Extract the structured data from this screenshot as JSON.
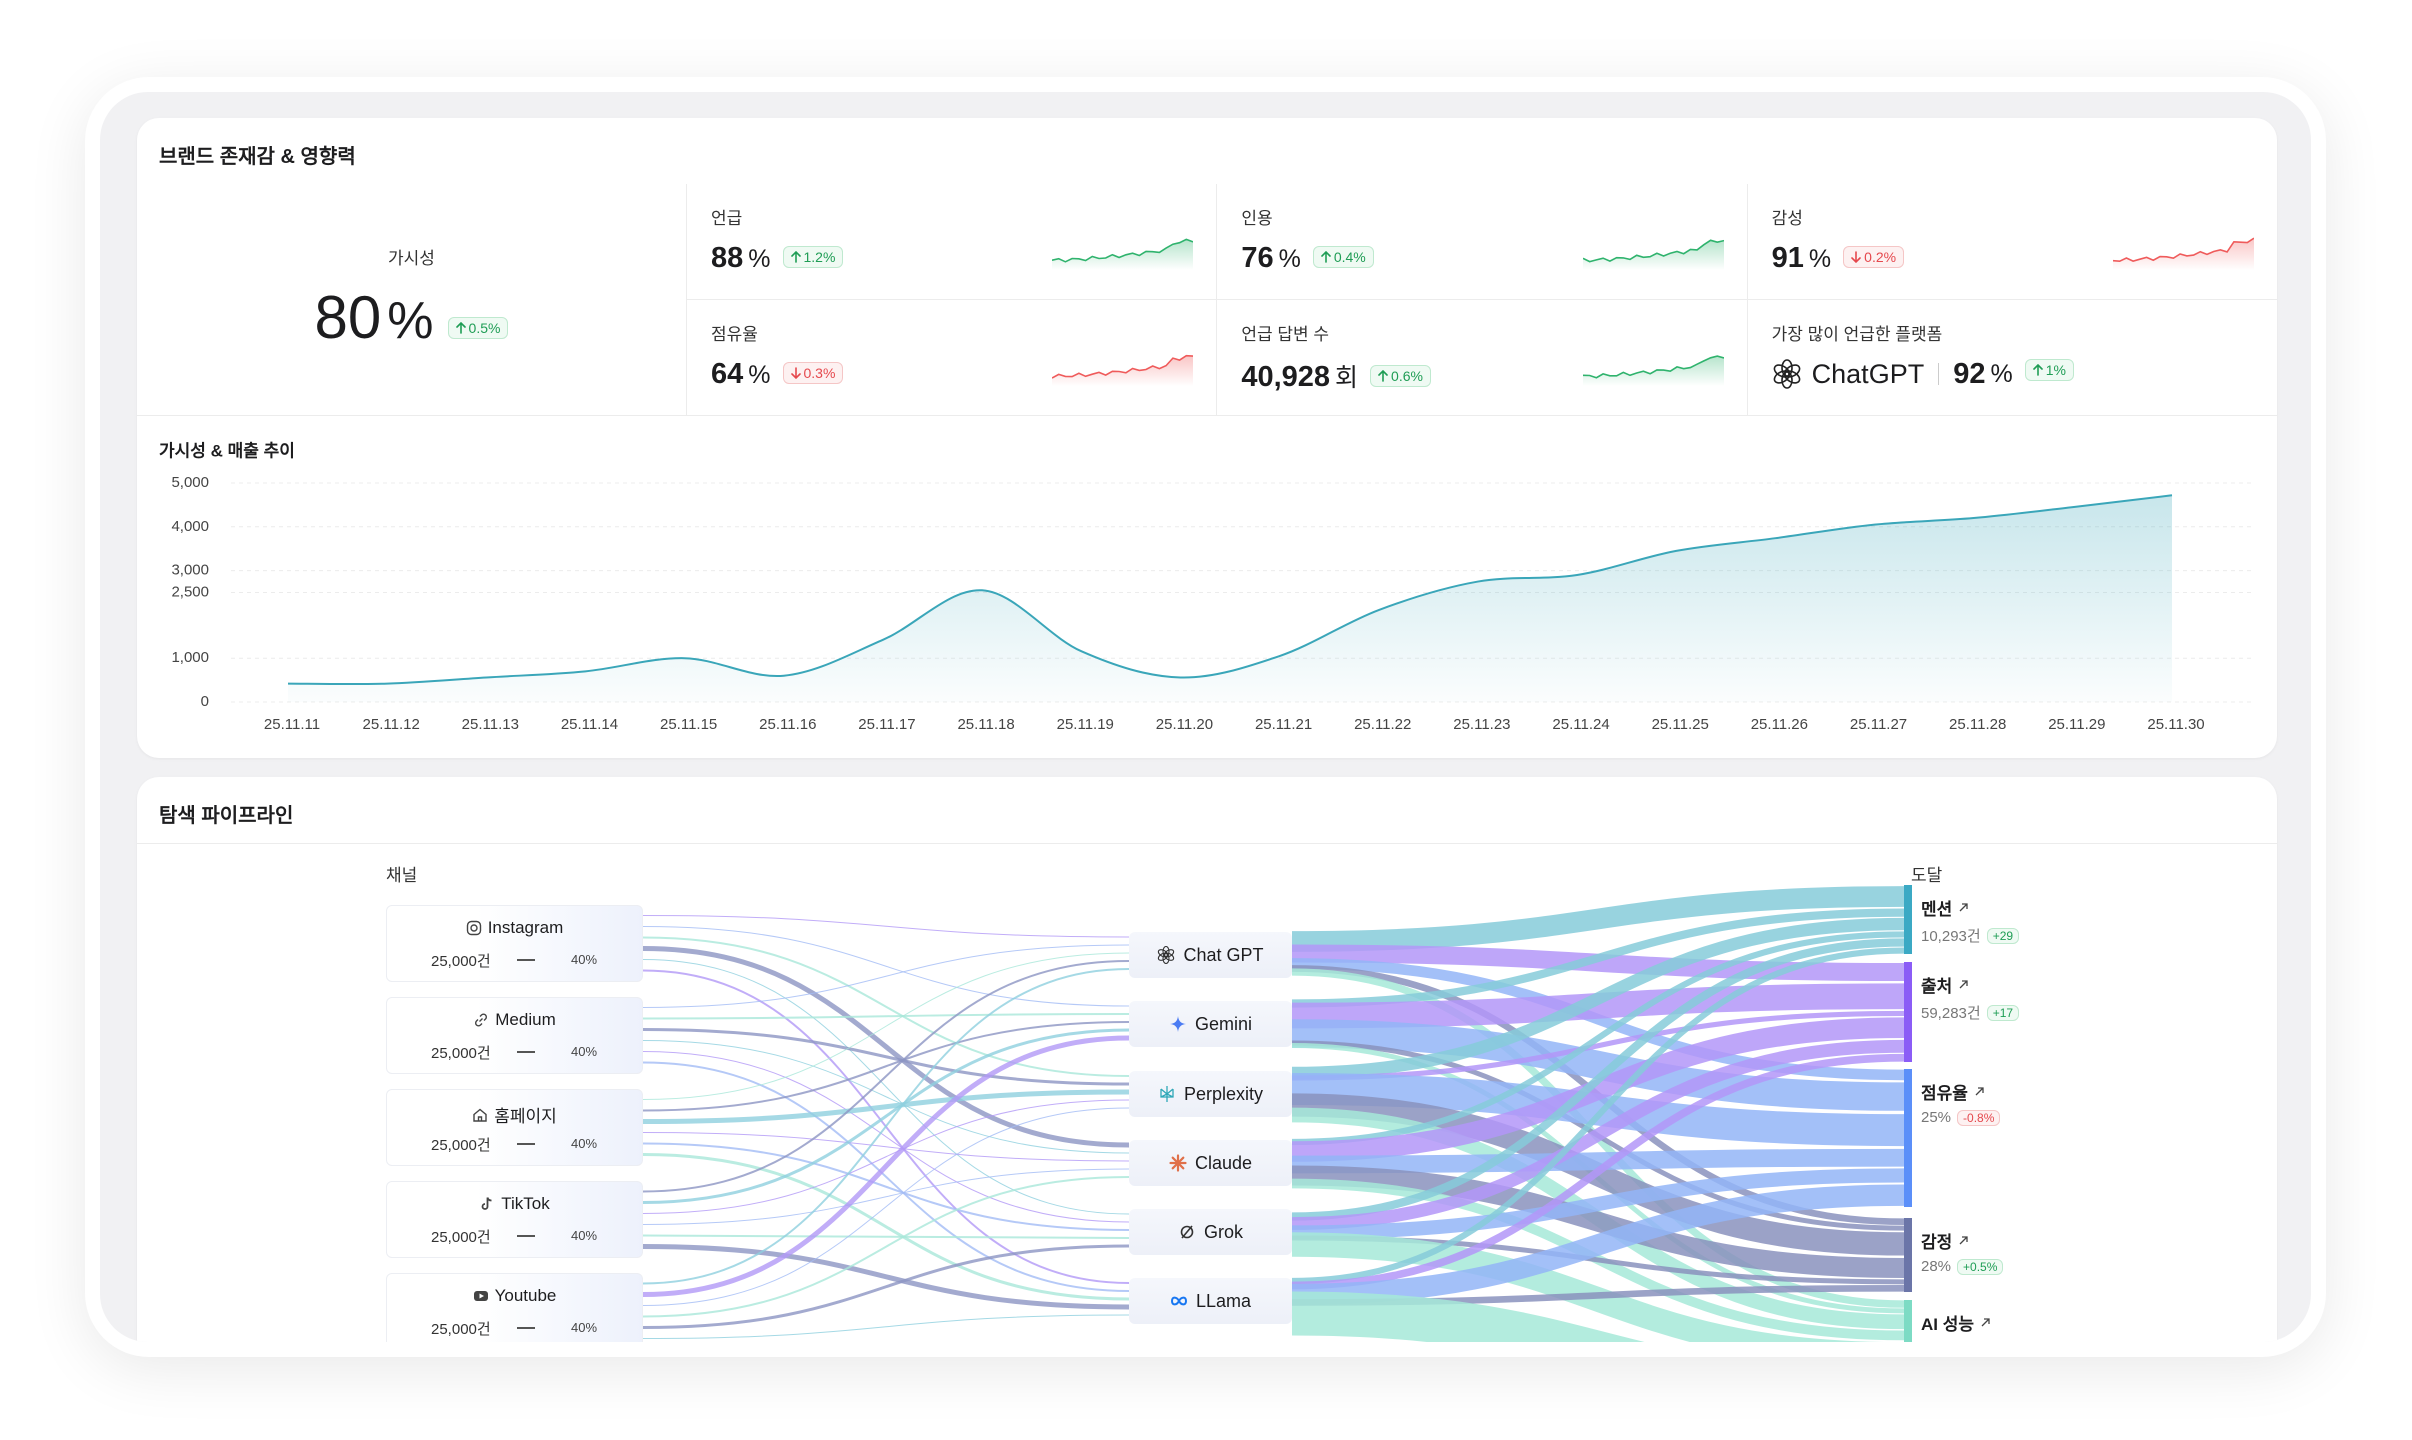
{
  "brand": {
    "title": "브랜드 존재감 & 영향력",
    "visibility": {
      "label": "가시성",
      "value": "80",
      "unit": "%",
      "change": "0.5%",
      "trend": "up"
    },
    "metrics": [
      {
        "label": "언급",
        "value": "88",
        "unit": "%",
        "change": "1.2%",
        "trend": "up"
      },
      {
        "label": "인용",
        "value": "76",
        "unit": "%",
        "change": "0.4%",
        "trend": "up"
      },
      {
        "label": "감성",
        "value": "91",
        "unit": "%",
        "change": "0.2%",
        "trend": "down"
      },
      {
        "label": "점유율",
        "value": "64",
        "unit": "%",
        "change": "0.3%",
        "trend": "down"
      },
      {
        "label": "언급 답변 수",
        "value": "40,928",
        "unit": "회",
        "change": "0.6%",
        "trend": "up"
      }
    ],
    "top_platform": {
      "label": "가장 많이 언급한 플랫폼",
      "name": "ChatGPT",
      "value": "92",
      "unit": "%",
      "change": "1%",
      "trend": "up"
    }
  },
  "trend_chart": {
    "type": "line",
    "title": "가시성 & 매출 추이",
    "x": [
      "25.11.11",
      "25.11.12",
      "25.11.13",
      "25.11.14",
      "25.11.15",
      "25.11.16",
      "25.11.17",
      "25.11.18",
      "25.11.19",
      "25.11.20",
      "25.11.21",
      "25.11.22",
      "25.11.23",
      "25.11.24",
      "25.11.25",
      "25.11.26",
      "25.11.27",
      "25.11.28",
      "25.11.29",
      "25.11.30"
    ],
    "values": [
      420,
      420,
      560,
      700,
      1000,
      600,
      1420,
      2550,
      1160,
      560,
      1050,
      2100,
      2750,
      2900,
      3450,
      3740,
      4050,
      4200,
      4450,
      4720
    ],
    "ylim": [
      0,
      5000
    ],
    "yticks": [
      0,
      {
        "value": 1000,
        "label": "1,000"
      },
      {
        "value": 2500,
        "label": "2,500"
      },
      {
        "value": 3000,
        "label": "3,000"
      },
      {
        "value": 4000,
        "label": "4,000"
      },
      {
        "value": 5000,
        "label": "5,000"
      }
    ],
    "color": "#3aa6b9",
    "grid": true
  },
  "pipeline": {
    "title": "탐색 파이프라인",
    "source_label": "채널",
    "target_label": "도달",
    "channels": [
      {
        "name": "Instagram",
        "count": "25,000건",
        "share": "40%"
      },
      {
        "name": "Medium",
        "count": "25,000건",
        "share": "40%"
      },
      {
        "name": "홈페이지",
        "count": "25,000건",
        "share": "40%"
      },
      {
        "name": "TikTok",
        "count": "25,000건",
        "share": "40%"
      },
      {
        "name": "Youtube",
        "count": "25,000건",
        "share": "40%"
      }
    ],
    "models": [
      "Chat GPT",
      "Gemini",
      "Perplexity",
      "Claude",
      "Grok",
      "LLama"
    ],
    "outcomes": [
      {
        "name": "멘션",
        "metric": "10,293건",
        "change": "+29",
        "trend": "up"
      },
      {
        "name": "출처",
        "metric": "59,283건",
        "change": "+17",
        "trend": "up"
      },
      {
        "name": "점유율",
        "metric": "25%",
        "change": "-0.8%",
        "trend": "down"
      },
      {
        "name": "감정",
        "metric": "28%",
        "change": "+0.5%",
        "trend": "up"
      },
      {
        "name": "AI 성능"
      }
    ]
  }
}
